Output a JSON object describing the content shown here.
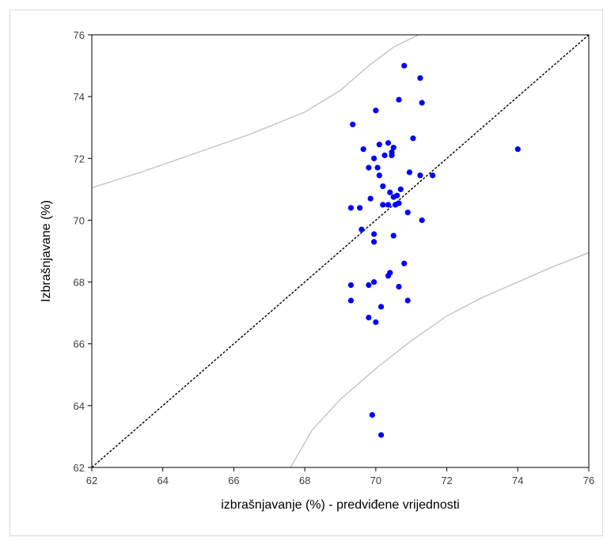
{
  "chart_data": {
    "type": "scatter",
    "title": "",
    "xlabel": "izbrašnjavanje (%) - predviđene vrijednosti",
    "ylabel": "Izbrašnjavane (%)",
    "xlim": [
      62,
      76
    ],
    "ylim": [
      62,
      76
    ],
    "x_ticks": [
      "62",
      "64",
      "66",
      "68",
      "70",
      "72",
      "74",
      "76"
    ],
    "y_ticks": [
      "62",
      "64",
      "66",
      "68",
      "70",
      "72",
      "74",
      "76"
    ],
    "grid": false,
    "legend": "none",
    "marker_color": "#0000ff",
    "points": [
      [
        70.8,
        75.0
      ],
      [
        71.25,
        74.6
      ],
      [
        70.65,
        73.9
      ],
      [
        71.3,
        73.8
      ],
      [
        70.0,
        73.55
      ],
      [
        69.35,
        73.1
      ],
      [
        71.05,
        72.65
      ],
      [
        70.35,
        72.5
      ],
      [
        70.1,
        72.45
      ],
      [
        70.5,
        72.35
      ],
      [
        69.65,
        72.3
      ],
      [
        70.45,
        72.2
      ],
      [
        70.25,
        72.1
      ],
      [
        70.45,
        72.1
      ],
      [
        69.95,
        72.0
      ],
      [
        74.0,
        72.3
      ],
      [
        69.8,
        71.7
      ],
      [
        70.05,
        71.7
      ],
      [
        70.95,
        71.55
      ],
      [
        70.1,
        71.45
      ],
      [
        71.25,
        71.45
      ],
      [
        71.6,
        71.45
      ],
      [
        70.2,
        71.1
      ],
      [
        70.7,
        71.0
      ],
      [
        70.4,
        70.9
      ],
      [
        70.5,
        70.75
      ],
      [
        70.6,
        70.8
      ],
      [
        69.85,
        70.7
      ],
      [
        70.65,
        70.55
      ],
      [
        70.55,
        70.5
      ],
      [
        70.35,
        70.5
      ],
      [
        70.2,
        70.5
      ],
      [
        69.3,
        70.4
      ],
      [
        69.55,
        70.4
      ],
      [
        70.9,
        70.25
      ],
      [
        71.3,
        70.0
      ],
      [
        69.6,
        69.7
      ],
      [
        69.95,
        69.55
      ],
      [
        70.5,
        69.5
      ],
      [
        69.95,
        69.3
      ],
      [
        70.8,
        68.6
      ],
      [
        70.4,
        68.3
      ],
      [
        70.35,
        68.2
      ],
      [
        69.95,
        68.0
      ],
      [
        69.3,
        67.9
      ],
      [
        69.8,
        67.9
      ],
      [
        70.65,
        67.85
      ],
      [
        69.3,
        67.4
      ],
      [
        70.9,
        67.4
      ],
      [
        70.15,
        67.2
      ],
      [
        69.8,
        66.85
      ],
      [
        70.0,
        66.7
      ],
      [
        69.9,
        63.7
      ],
      [
        70.15,
        63.05
      ]
    ],
    "reference_line": {
      "style": "dashed",
      "color": "#000000",
      "from": [
        62,
        62
      ],
      "to": [
        76,
        76
      ]
    },
    "confidence_bands": {
      "color": "#c0c0c0",
      "upper": [
        [
          62.0,
          71.05
        ],
        [
          63.5,
          71.6
        ],
        [
          65.0,
          72.2
        ],
        [
          66.5,
          72.8
        ],
        [
          68.0,
          73.5
        ],
        [
          69.0,
          74.2
        ],
        [
          69.8,
          75.0
        ],
        [
          70.5,
          75.6
        ],
        [
          71.2,
          76.0
        ]
      ],
      "lower": [
        [
          67.6,
          62.0
        ],
        [
          68.2,
          63.2
        ],
        [
          69.0,
          64.2
        ],
        [
          70.0,
          65.2
        ],
        [
          71.0,
          66.1
        ],
        [
          72.0,
          66.9
        ],
        [
          73.0,
          67.5
        ],
        [
          74.0,
          68.0
        ],
        [
          75.0,
          68.5
        ],
        [
          76.0,
          68.95
        ]
      ]
    }
  }
}
